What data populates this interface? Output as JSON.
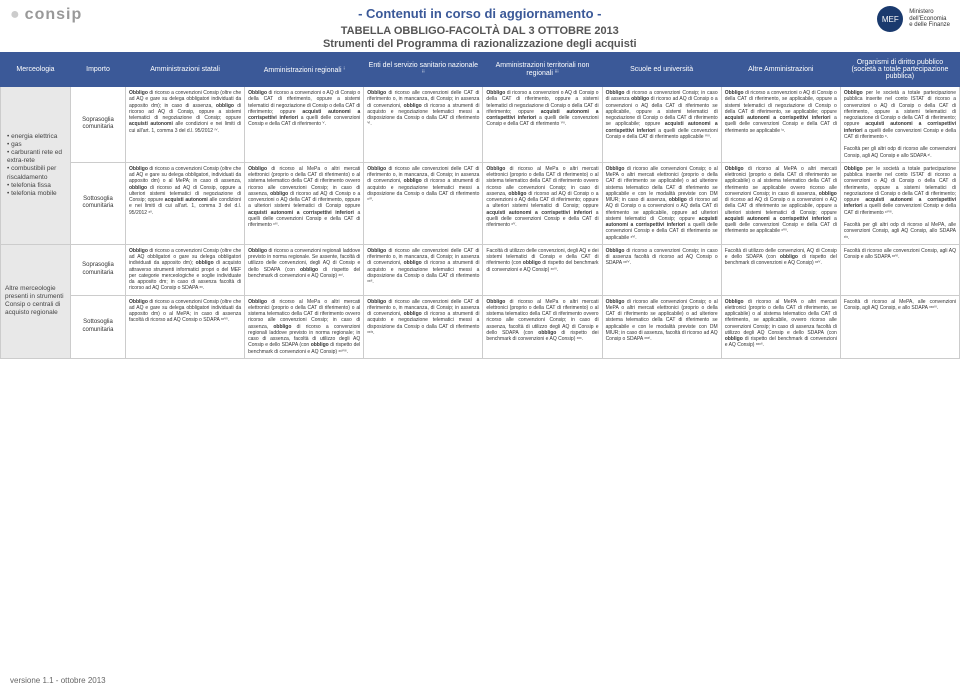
{
  "header": {
    "logo_left": "consip",
    "title_banner": "- Contenuti in corso di aggiornamento -",
    "title_main": "TABELLA OBBLIGO-FACOLTÀ DAL 3 OTTOBRE 2013",
    "title_sub": "Strumenti del Programma di razionalizzazione degli acquisti",
    "mef_line1": "Ministero",
    "mef_line2": "dell'Economia",
    "mef_line3": "e delle Finanze",
    "mef_badge": "MEF"
  },
  "columns": [
    "Merceologia",
    "Importo",
    "Amministrazioni statali",
    "Amministrazioni regionali ⁱ",
    "Enti del servizio sanitario nazionale ⁱⁱ",
    "Amministrazioni territoriali non regionali ⁱⁱⁱ",
    "Scuole ed università",
    "Altre Amministrazioni",
    "Organismi di diritto pubblico (società a totale partecipazione pubblica)"
  ],
  "sidebar1_items": [
    "energia elettrica",
    "gas",
    "carburanti rete ed extra-rete",
    "combustibili per riscaldamento",
    "telefonia fissa",
    "telefonia mobile"
  ],
  "sidebar2": "Altre merceologie presenti in strumenti Consip o centrali di acquisto regionale",
  "rows": [
    {
      "imp": "Soprasoglia comunitaria",
      "c": [
        "Obbligo di ricorso a convenzioni Consip (oltre che ad AQ e gare su delega obbligatori individuati da apposito dm); in caso di assenza, obbligo di ricorso ad AQ di Consip, oppure a sistemi telematici di negoziazione di Consip; oppure acquisti autonomi alle condizioni e nei limiti di cui all'art. 1, comma 3 del d.l. 95/2012 ⁱⱽ.",
        "Obbligo di ricorso a convenzioni o AQ di Consip o della CAT di riferimento, oppure a sistemi telematici di negoziazione di Consip o della CAT di riferimento; oppure acquisti autonomi a corrispettivi inferiori a quelli delle convenzioni Consip e della CAT di riferimento ⱽ.",
        "Obbligo di ricorso alle convenzioni delle CAT di riferimento o, in mancanza, di Consip; in assenza di convenzioni, obbligo di ricorso a strumenti di acquisto e negoziazione telematici messi a disposizione da Consip o dalla CAT di riferimento ⱽⁱ.",
        "Obbligo di ricorso a convenzioni o AQ di Consip o della CAT di riferimento, oppure a sistemi telematici di negoziazione di Consip o della CAT di riferimento; oppure acquisti autonomi a corrispettivi inferiori a quelli delle convenzioni Consip e della CAT di riferimento ⱽⁱⁱ.",
        "Obbligo di ricorso a convenzioni Consip; in caso di assenza obbligo di ricorso ad AQ di Consip o a convenzioni o AQ della CAT di riferimento se applicabile, oppure a sistemi telematici di negoziazione di Consip o della CAT di riferimento se applicabile; oppure acquisti autonomi a corrispettivi inferiori a quelli delle convenzioni Consip e della CAT di riferimento applicabile ⱽⁱⁱⁱ.",
        "Obbligo di ricorso a convenzioni o AQ di Consip o della CAT di riferimento, se applicabile, oppure a sistemi telematici di negoziazione di Consip o della CAT di riferimento, se applicabile; oppure acquisti autonomi a corrispettivi inferiori a quelli delle convenzioni Consip e della CAT di riferimento se applicabile ⁱˣ.",
        "Obbligo per le società a totale partecipazione pubblica inserite nel conto ISTAT di ricorso a convenzioni o AQ di Consip o della CAT di riferimento, oppure a sistemi telematici di negoziazione di Consip o della CAT di riferimento; oppure acquisti autonomi a corrispettivi inferiori a quelli delle convenzioni Consip e della CAT di riferimento ˣ.\n\nFacoltà per gli altri odp di ricorso alle convenzioni Consip, agli AQ Consip e allo SDAPA ˣⁱ."
      ]
    },
    {
      "imp": "Sottosoglia comunitaria",
      "c": [
        "Obbligo di ricorso a convenzioni Consip (oltre che ad AQ e gare su delega obbligatori, individuati da apposito dm) o al MePA; in caso di assenza, obbligo di ricorso ad AQ di Consip, oppure a ulteriori sistemi telematici di negoziazione di Consip; oppure acquisti autonomi alle condizioni e nei limiti di cui all'art. 1, comma 3 del d.l. 95/2012 ˣⁱⁱ.",
        "Obbligo di ricorso al MePa o altri mercati elettronici (proprio o della CAT di riferimento) o al sistema telematico della CAT di riferimento ovvero ricorso alle convenzioni Consip; in caso di assenza, obbligo di ricorso ad AQ di Consip o a convenzioni o AQ della CAT di riferimento, oppure a ulteriori sistemi telematici di Consip oppure acquisti autonomi a corrispettivi inferiori a quelli delle convenzioni Consip e della CAT di riferimento ˣⁱⁱⁱ.",
        "Obbligo di ricorso alle convenzioni delle CAT di riferimento o, in mancanza, di Consip; in assenza di convenzioni, obbligo di ricorso a strumenti di acquisto e negoziazione telematici messi a disposizione da Consip o dalla CAT di riferimento ˣⁱⱽ.",
        "Obbligo di ricorso al MePa o altri mercati elettronici (proprio o della CAT di riferimento) o al sistema telematico della CAT di riferimento ovvero ricorso alle convenzioni Consip; in caso di assenza, obbligo di ricorso ad AQ di Consip o a convenzioni o AQ della CAT di riferimento; oppure a ulteriori sistemi telematici di Consip; oppure acquisti autonomi a corrispettivi inferiori a quelli delle convenzioni Consip e della CAT di riferimento ˣⱽ.",
        "Obbligo di ricorso alle convenzioni Consip; o al MePA o altri mercati elettronici (proprio o della CAT di riferimento se applicabile) o ad ulteriore sistema telematico della CAT di riferimento se applicabile e con le modalità previste con DM MIUR; in caso di assenza, obbligo di ricorso ad AQ di Consip o a convenzioni o AQ della CAT di riferimento se applicabile, oppure ad ulteriori sistemi telematici di Consip; oppure acquisti autonomi a corrispettivi inferiori a quelli delle convenzioni Consip e della CAT di riferimento se applicabile ˣⱽⁱ.",
        "Obbligo di ricorso al MePA o altri mercati elettronici (proprio o della CAT di riferimento se applicabile) o al sistema telematico della CAT di riferimento se applicabile ovvero ricorso alle convenzioni Consip; in caso di assenza, obbligo di ricorso ad AQ di Consip o a convenzioni o AQ della CAT di riferimento se applicabile, oppure a ulteriori sistemi telematici di Consip; oppure acquisti autonomi a corrispettivi inferiori a quelli delle convenzioni Consip e della CAT di riferimento se applicabile ˣⱽⁱⁱ.",
        "Obbligo per le società a totale partecipazione pubblica inserite nel conto ISTAT di ricorso a convenzioni o AQ di Consip o della CAT di riferimento, oppure a sistemi telematici di negoziazione di Consip o della CAT di riferimento; oppure acquisti autonomi a corrispettivi inferiori a quelli delle convenzioni Consip e della CAT di riferimento ˣⱽⁱⁱⁱ.\n\nFacoltà per gli altri odp di ricorso al MePA, alle convenzioni Consip, agli AQ Consip, allo SDAPA ˣⁱˣ."
      ]
    },
    {
      "imp": "Soprasoglia comunitaria",
      "c": [
        "Obbligo di ricorso a convenzioni Consip (oltre che ad AQ obbligatori o gare su delega obbligatori individuati da apposito dm); obbligo di acquisto attraverso strumenti informatici propri o del MEF per categorie merceologiche e soglie individuate da apposito dm; in caso di assenza facoltà di ricorso ad AQ Consip o SDAPA ˣˣ.",
        "Obbligo di ricorso a convenzioni regionali laddove previsto in norma regionale. Se assente, facoltà di utilizzo delle convenzioni, degli AQ di Consip e dello SDAPA (con obbligo di rispetto del benchmark di convenzioni e AQ Consip) ˣˣⁱ.",
        "Obbligo di ricorso alle convenzioni delle CAT di riferimento o, in mancanza, di Consip; in assenza di convenzioni, obbligo di ricorso a strumenti di acquisto e negoziazione telematici messi a disposizione da Consip o dalla CAT di riferimento ˣˣⁱⁱ.",
        "Facoltà di utilizzo delle convenzioni, degli AQ e dei sistemi telematici di Consip e della CAT di riferimento (con obbligo di rispetto del benchmark di convenzioni e AQ Consip) ˣˣⁱⁱⁱ.",
        "Obbligo di ricorso a convenzioni Consip; in caso di assenza facoltà di ricorso ad AQ Consip o SDAPA ˣˣⁱⱽ.",
        "Facoltà di utilizzo delle convenzioni, AQ di Consip e dello SDAPA (con obbligo di rispetto del benchmark di convenzioni e AQ Consip) ˣˣⱽ.",
        "Facoltà di ricorso alle convenzioni Consip, agli AQ Consip e allo SDAPA ˣˣⱽⁱ."
      ]
    },
    {
      "imp": "Sottosoglia comunitaria",
      "c": [
        "Obbligo di ricorso a convenzioni Consip (oltre che ad AQ e gare su delega obbligatori individuati da apposito dm) o al MePA; in caso di assenza facoltà di ricorso ad AQ Consip o SDAPA ˣˣⱽⁱⁱ.",
        "Obbligo di ricorso al MePa o altri mercati elettronici (proprio o della CAT di riferimento) o al sistema telematico della CAT di riferimento ovvero ricorso alle convenzioni Consip; in caso di assenza, obbligo di ricorso a convenzioni regionali laddove previsto in norma regionale; in caso di assenza, facoltà di utilizzo degli AQ Consip e dello SDAPA (con obbligo di rispetto del benchmark di convenzioni e AQ Consip) ˣˣⱽⁱⁱⁱ.",
        "Obbligo di ricorso alle convenzioni delle CAT di riferimento o, in mancanza, di Consip; in assenza di convenzioni, obbligo di ricorso a strumenti di acquisto e negoziazione telematici messi a disposizione da Consip o dalla CAT di riferimento ˣˣⁱˣ.",
        "Obbligo di ricorso al MePa o altri mercati elettronici (proprio o della CAT di riferimento) o al sistema telematico della CAT di riferimento ovvero ricorso alle convenzioni Consip; in caso di assenza, facoltà di utilizzo degli AQ di Consip e dello SDAPA (con obbligo di rispetto dei benchmark di convenzioni e AQ Consip) ˣˣˣ.",
        "Obbligo di ricorso alle convenzioni Consip; o al MePA o altri mercati elettronici (proprio o della CAT di riferimento se applicabile) o ad ulteriore sistema telematico della CAT di riferimento se applicabile e con le modalità previste con DM MIUR; in caso di assenza, facoltà di ricorso ad AQ Consip o SDAPA ˣˣˣⁱ.",
        "Obbligo di ricorso al MePA o altri mercati elettronici (proprio o della CAT di riferimento, se applicabile) o al sistema telematico della CAT di riferimento, se applicabile, ovvero ricorso alle convenzioni Consip; in caso di assenza facoltà di utilizzo degli AQ Consip e dello SDAPA (con obbligo di rispetto del benchmark di convenzioni e AQ Consip) ˣˣˣⁱⁱ.",
        "Facoltà di ricorso al MePA, alle convenzioni Consip, agli AQ Consip, e allo SDAPA ˣˣˣⁱⁱⁱ."
      ]
    }
  ],
  "footer": "versione 1.1 - ottobre 2013"
}
